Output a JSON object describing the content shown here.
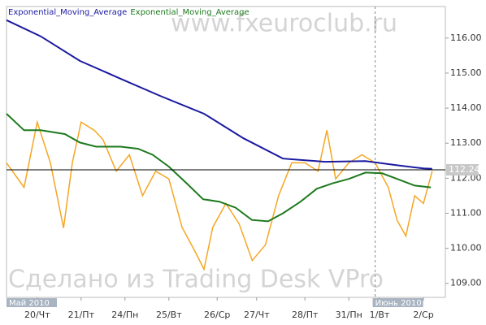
{
  "chart_data": {
    "type": "line",
    "watermarks": [
      "www.fxeuroclub.ru",
      "Сделано из Trading Desk VPro"
    ],
    "xlim": [
      0,
      100
    ],
    "ylim": [
      108.6,
      116.9
    ],
    "yticks": [
      {
        "value": 109,
        "label": "109.00"
      },
      {
        "value": 110,
        "label": "110.00"
      },
      {
        "value": 111,
        "label": "111.00"
      },
      {
        "value": 112,
        "label": "112.00"
      },
      {
        "value": 113,
        "label": "113.00"
      },
      {
        "value": 114,
        "label": "114.00"
      },
      {
        "value": 115,
        "label": "115.00"
      },
      {
        "value": 116,
        "label": "116.00"
      }
    ],
    "xticks": [
      {
        "value": 7,
        "label": "20/Чт"
      },
      {
        "value": 17,
        "label": "21/Пт"
      },
      {
        "value": 27,
        "label": "24/Пн"
      },
      {
        "value": 37,
        "label": "25/Вт"
      },
      {
        "value": 48,
        "label": "26/Ср"
      },
      {
        "value": 57,
        "label": "27/Чт"
      },
      {
        "value": 68,
        "label": "28/Пт"
      },
      {
        "value": 78,
        "label": "31/Пн"
      },
      {
        "value": 85,
        "label": "1/Вт"
      },
      {
        "value": 95,
        "label": "2/Ср"
      }
    ],
    "months": [
      {
        "value": 0,
        "label": "Май 2010"
      },
      {
        "value": 84,
        "label": "Июнь 2010"
      }
    ],
    "last_price": 112.24,
    "series": [
      {
        "color": "#f5a623",
        "x": [
          0,
          4,
          7,
          10,
          13,
          15,
          17,
          20,
          22,
          25,
          28,
          31,
          34,
          37,
          40,
          43,
          45,
          47,
          50,
          53,
          56,
          59,
          62,
          65,
          68,
          71,
          73,
          75,
          78,
          81,
          84,
          87,
          89,
          91,
          93,
          95,
          97
        ],
        "values": [
          112.44,
          111.74,
          113.6,
          112.44,
          110.58,
          112.44,
          113.6,
          113.37,
          113.1,
          112.2,
          112.67,
          111.5,
          112.2,
          111.98,
          110.6,
          109.9,
          109.4,
          110.6,
          111.28,
          110.7,
          109.65,
          110.1,
          111.5,
          112.44,
          112.44,
          112.2,
          113.37,
          111.98,
          112.44,
          112.67,
          112.44,
          111.74,
          110.8,
          110.35,
          111.5,
          111.28,
          112.2
        ]
      },
      {
        "name": "Exponential_Moving_Average",
        "color": "#1a1aa0",
        "x": [
          0,
          7.8,
          16.7,
          26,
          35,
          45,
          54,
          63,
          72.6,
          81.8,
          89,
          95,
          97
        ],
        "values": [
          116.51,
          116.05,
          115.35,
          114.84,
          114.35,
          113.84,
          113.14,
          112.56,
          112.47,
          112.49,
          112.37,
          112.28,
          112.27
        ]
      },
      {
        "name": "Exponential_Moving_Average",
        "color": "#1e7a1e",
        "x": [
          0,
          4,
          7.8,
          13.3,
          16.7,
          20.4,
          26,
          30,
          33.3,
          37,
          41,
          44.8,
          48.5,
          52.2,
          55.9,
          59.6,
          63,
          67,
          70.7,
          74.4,
          78,
          81.8,
          85.6,
          89,
          93,
          96.7
        ],
        "values": [
          113.84,
          113.37,
          113.37,
          113.26,
          113.02,
          112.9,
          112.9,
          112.84,
          112.67,
          112.33,
          111.86,
          111.4,
          111.33,
          111.16,
          110.81,
          110.77,
          111.0,
          111.33,
          111.7,
          111.86,
          111.98,
          112.16,
          112.14,
          111.98,
          111.79,
          111.74
        ]
      }
    ]
  }
}
